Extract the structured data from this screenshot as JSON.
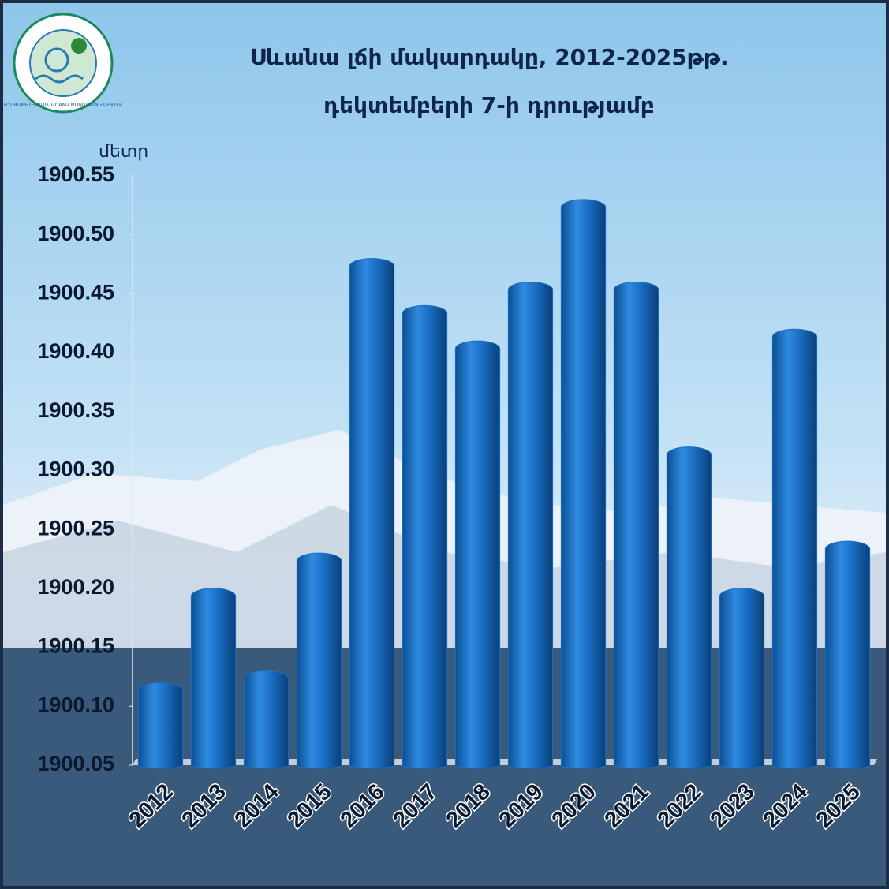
{
  "logo_text": "HYDROMETEOROLOGY AND MONITORING CENTER",
  "chart_data": {
    "type": "bar",
    "title": "Սևանա լճի մակարդակը, 2012-2025թթ.",
    "subtitle": "դեկտեմբերի 7-ի դրությամբ",
    "y_label": "մետր",
    "categories": [
      "2012",
      "2013",
      "2014",
      "2015",
      "2016",
      "2017",
      "2018",
      "2019",
      "2020",
      "2021",
      "2022",
      "2023",
      "2024",
      "2025"
    ],
    "values": [
      1900.12,
      1900.2,
      1900.13,
      1900.23,
      1900.48,
      1900.44,
      1900.41,
      1900.46,
      1900.53,
      1900.46,
      1900.32,
      1900.2,
      1900.42,
      1900.24
    ],
    "color": "#1a6fc4",
    "ylim": [
      1900.05,
      1900.55
    ],
    "yticks": [
      1900.05,
      {
        "value": 1900.1,
        "label": "1900.10"
      },
      1900.15,
      {
        "value": 1900.2,
        "label": "1900.20"
      },
      1900.25,
      {
        "value": 1900.3,
        "label": "1900.30"
      },
      1900.35,
      {
        "value": 1900.4,
        "label": "1900.40"
      },
      1900.45,
      {
        "value": 1900.5,
        "label": "1900.50"
      },
      1900.55
    ],
    "grid": false
  }
}
